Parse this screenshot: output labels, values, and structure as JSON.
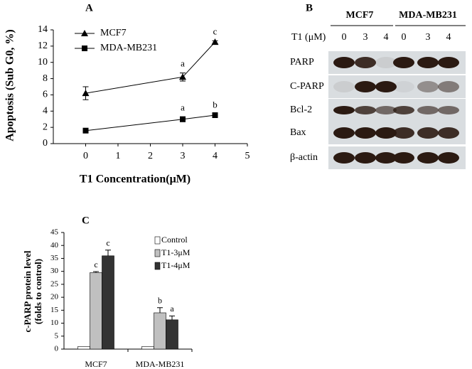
{
  "chart_data": [
    {
      "type": "line",
      "title": "A",
      "ylabel": "Apoptosis (Sub G0, %)",
      "xlabel": "T1 Concentration(μM)",
      "xlim": [
        -1,
        5
      ],
      "xticks": [
        0,
        1,
        2,
        3,
        4,
        5
      ],
      "ylim": [
        0,
        14
      ],
      "yticks": [
        0,
        2,
        4,
        6,
        8,
        10,
        12,
        14
      ],
      "legend": "upper-left",
      "series": [
        {
          "name": "MCF7",
          "marker": "triangle",
          "color": "#000000",
          "x": [
            0,
            3,
            4
          ],
          "values": [
            6.2,
            8.2,
            12.5
          ],
          "errors": [
            0.8,
            0.5,
            0.15
          ],
          "labels": [
            null,
            "a",
            "c"
          ]
        },
        {
          "name": "MDA-MB231",
          "marker": "square",
          "color": "#000000",
          "x": [
            0,
            3,
            4
          ],
          "values": [
            1.6,
            3.0,
            3.5
          ],
          "errors": [
            0.1,
            0.3,
            0.15
          ],
          "labels": [
            null,
            "a",
            "b"
          ]
        }
      ]
    },
    {
      "type": "bar",
      "title": "C",
      "ylabel": [
        "c-PARP protein level",
        "(folds to control)"
      ],
      "categories": [
        "MCF7",
        "MDA-MB231"
      ],
      "ylim": [
        0,
        45
      ],
      "yticks": [
        0,
        5,
        10,
        15,
        20,
        25,
        30,
        35,
        40,
        45
      ],
      "legend": "upper-right",
      "series": [
        {
          "name": "Control",
          "color": "#ffffff",
          "values": [
            1,
            1
          ]
        },
        {
          "name": "T1-3μM",
          "color": "#c0c0c0",
          "values": [
            29.5,
            14
          ],
          "errors": [
            0.4,
            2
          ],
          "labels": [
            "c",
            "b"
          ]
        },
        {
          "name": "T1-4μM",
          "color": "#333333",
          "values": [
            36,
            11.3
          ],
          "errors": [
            2.2,
            1.5
          ],
          "labels": [
            "c",
            "a"
          ]
        }
      ]
    }
  ],
  "blot": {
    "title": "B",
    "cell_lines": [
      "MCF7",
      "MDA-MB231"
    ],
    "dose_label": "T1 (μM)",
    "doses": [
      0,
      3,
      4,
      0,
      3,
      4
    ],
    "rows": [
      "PARP",
      "C-PARP",
      "Bcl-2",
      "Bax",
      "β-actin"
    ]
  }
}
